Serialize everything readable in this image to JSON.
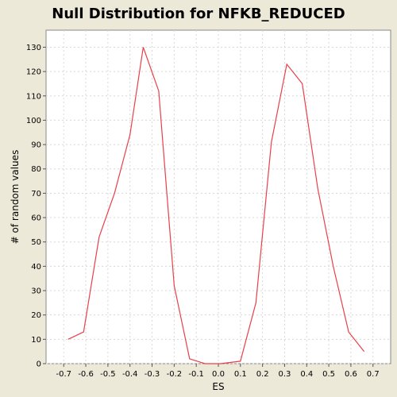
{
  "chart_data": {
    "type": "line",
    "title": "Null Distribution for NFKB_REDUCED",
    "xlabel": "ES",
    "ylabel": "# of random values",
    "xlim": [
      -0.78,
      0.78
    ],
    "ylim": [
      0,
      137
    ],
    "grid": true,
    "x_ticks": [
      -0.7,
      -0.6,
      -0.5,
      -0.4,
      -0.3,
      -0.2,
      -0.1,
      0.0,
      0.1,
      0.2,
      0.3,
      0.4,
      0.5,
      0.6,
      0.7
    ],
    "x_tick_labels": [
      "-0.7",
      "-0.6",
      "-0.5",
      "-0.4",
      "-0.3",
      "-0.2",
      "-0.1",
      "0.0",
      "0.1",
      "0.2",
      "0.3",
      "0.4",
      "0.5",
      "0.6",
      "0.7"
    ],
    "y_ticks": [
      0,
      10,
      20,
      30,
      40,
      50,
      60,
      70,
      80,
      90,
      100,
      110,
      120,
      130
    ],
    "y_tick_labels": [
      "0",
      "10",
      "20",
      "30",
      "40",
      "50",
      "60",
      "70",
      "80",
      "90",
      "100",
      "110",
      "120",
      "130"
    ],
    "series": [
      {
        "color": "#e8404a",
        "x": [
          -0.68,
          -0.61,
          -0.54,
          -0.47,
          -0.4,
          -0.34,
          -0.27,
          -0.2,
          -0.13,
          -0.06,
          0.01,
          0.1,
          0.17,
          0.24,
          0.31,
          0.38,
          0.45,
          0.52,
          0.59,
          0.66
        ],
        "y": [
          10,
          13,
          52,
          70,
          94,
          130,
          112,
          32,
          2,
          0,
          0,
          1,
          25,
          91,
          123,
          115,
          72,
          40,
          13,
          5
        ]
      }
    ]
  }
}
